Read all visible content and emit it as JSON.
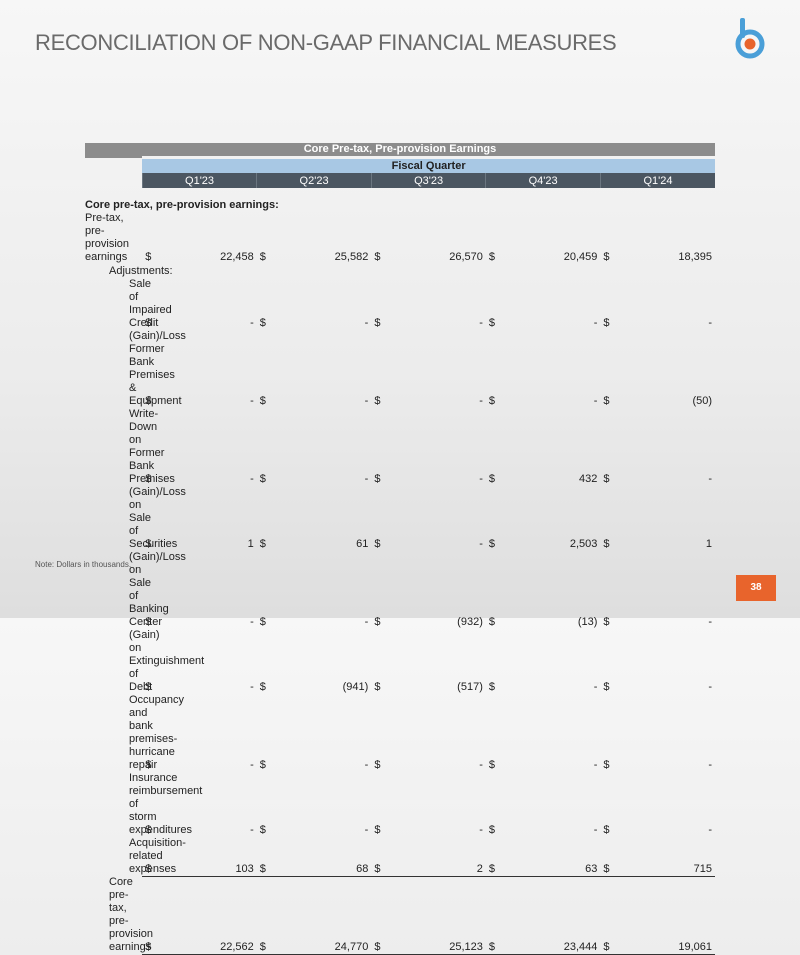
{
  "header": {
    "title": "RECONCILIATION OF NON-GAAP FINANCIAL MEASURES"
  },
  "table": {
    "title": "Core Pre-tax, Pre-provision Earnings",
    "group_header": "Fiscal Quarter",
    "columns": [
      "Q1'23",
      "Q2'23",
      "Q3'23",
      "Q4'23",
      "Q1'24"
    ],
    "section_label": "Core pre-tax, pre-provision earnings:",
    "currency": "$",
    "pretax": {
      "label": "Pre-tax, pre-provision earnings",
      "values": [
        "22,458",
        "25,582",
        "26,570",
        "20,459",
        "18,395"
      ]
    },
    "adjustments": {
      "label": "Adjustments:",
      "rows": [
        {
          "label": "Sale of Impaired Credit",
          "values": [
            "-",
            "-",
            "-",
            "-",
            "-"
          ]
        },
        {
          "label": "(Gain)/Loss Former Bank Premises & Equipment",
          "values": [
            "-",
            "-",
            "-",
            "-",
            "(50)"
          ]
        },
        {
          "label": "Write-Down on Former Bank Premises",
          "values": [
            "-",
            "-",
            "-",
            "432",
            "-"
          ]
        },
        {
          "label": "(Gain)/Loss on Sale of Securities",
          "values": [
            "1",
            "61",
            "-",
            "2,503",
            "1"
          ]
        },
        {
          "label": "(Gain)/Loss on Sale of Banking Center",
          "values": [
            "-",
            "-",
            "(932)",
            "(13)",
            "-"
          ]
        },
        {
          "label": "(Gain) on Extinguishment of Debt",
          "values": [
            "-",
            "(941)",
            "(517)",
            "-",
            "-"
          ]
        },
        {
          "label": "Occupancy and bank premises- hurricane repair",
          "values": [
            "-",
            "-",
            "-",
            "-",
            "-"
          ]
        },
        {
          "label": "Insurance reimbursement of storm expenditures",
          "values": [
            "-",
            "-",
            "-",
            "-",
            "-"
          ]
        },
        {
          "label": "Acquisition-related expenses",
          "values": [
            "103",
            "68",
            "2",
            "63",
            "715"
          ]
        }
      ]
    },
    "total": {
      "label": "Core pre-tax, pre-provision earnings",
      "values": [
        "22,562",
        "24,770",
        "25,123",
        "23,444",
        "19,061"
      ]
    }
  },
  "footnote": "Note: Dollars in thousands.",
  "page_number": "38"
}
